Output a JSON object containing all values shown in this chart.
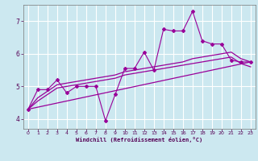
{
  "xlabel": "Windchill (Refroidissement éolien,°C)",
  "xlim": [
    -0.5,
    23.5
  ],
  "ylim": [
    3.7,
    7.5
  ],
  "yticks": [
    4,
    5,
    6,
    7
  ],
  "xticks": [
    0,
    1,
    2,
    3,
    4,
    5,
    6,
    7,
    8,
    9,
    10,
    11,
    12,
    13,
    14,
    15,
    16,
    17,
    18,
    19,
    20,
    21,
    22,
    23
  ],
  "bg_color": "#cce8f0",
  "grid_color": "#ffffff",
  "line_color": "#990099",
  "line1_x": [
    0,
    1,
    2,
    3,
    4,
    5,
    6,
    7,
    8,
    9,
    10,
    11,
    12,
    13,
    14,
    15,
    16,
    17,
    18,
    19,
    20,
    21,
    22,
    23
  ],
  "line1_y": [
    4.3,
    4.9,
    4.9,
    5.2,
    4.8,
    5.0,
    5.0,
    5.0,
    3.95,
    4.75,
    5.55,
    5.55,
    6.05,
    5.5,
    6.75,
    6.7,
    6.7,
    7.3,
    6.4,
    6.3,
    6.3,
    5.8,
    5.75,
    5.75
  ],
  "line2_x": [
    0,
    1,
    2,
    3,
    4,
    5,
    6,
    7,
    8,
    9,
    10,
    11,
    12,
    13,
    14,
    15,
    16,
    17,
    18,
    19,
    20,
    21,
    22,
    23
  ],
  "line2_y": [
    4.3,
    4.65,
    4.85,
    5.05,
    5.1,
    5.15,
    5.2,
    5.25,
    5.3,
    5.35,
    5.45,
    5.5,
    5.55,
    5.6,
    5.65,
    5.7,
    5.75,
    5.85,
    5.9,
    5.95,
    6.0,
    6.05,
    5.85,
    5.75
  ],
  "line3_x": [
    0,
    1,
    2,
    3,
    4,
    5,
    6,
    7,
    8,
    9,
    10,
    11,
    12,
    13,
    14,
    15,
    16,
    17,
    18,
    19,
    20,
    21,
    22,
    23
  ],
  "line3_y": [
    4.3,
    4.55,
    4.75,
    4.95,
    5.0,
    5.05,
    5.1,
    5.15,
    5.2,
    5.25,
    5.35,
    5.4,
    5.45,
    5.5,
    5.55,
    5.6,
    5.65,
    5.7,
    5.75,
    5.8,
    5.85,
    5.9,
    5.7,
    5.6
  ],
  "line4_x": [
    0,
    23
  ],
  "line4_y": [
    4.3,
    5.75
  ]
}
